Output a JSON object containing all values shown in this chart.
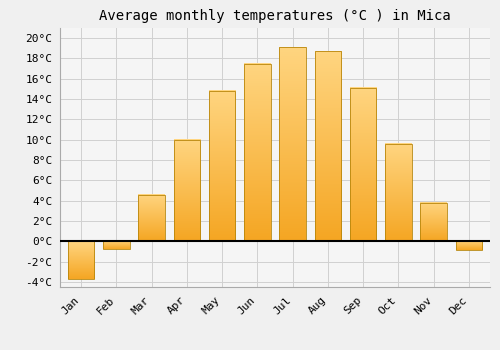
{
  "title": "Average monthly temperatures (°C ) in Mica",
  "months": [
    "Jan",
    "Feb",
    "Mar",
    "Apr",
    "May",
    "Jun",
    "Jul",
    "Aug",
    "Sep",
    "Oct",
    "Nov",
    "Dec"
  ],
  "values": [
    -3.7,
    -0.8,
    4.6,
    10.0,
    14.8,
    17.5,
    19.1,
    18.7,
    15.1,
    9.6,
    3.8,
    -0.9
  ],
  "bar_color_bottom": "#F5A623",
  "bar_color_top": "#FFD580",
  "bar_edge_color": "#B8860B",
  "ylim": [
    -4.5,
    21
  ],
  "yticks": [
    -4,
    -2,
    0,
    2,
    4,
    6,
    8,
    10,
    12,
    14,
    16,
    18,
    20
  ],
  "background_color": "#f0f0f0",
  "plot_bg_color": "#f5f5f5",
  "grid_color": "#d0d0d0",
  "title_fontsize": 10,
  "tick_fontsize": 8,
  "bar_width": 0.75
}
